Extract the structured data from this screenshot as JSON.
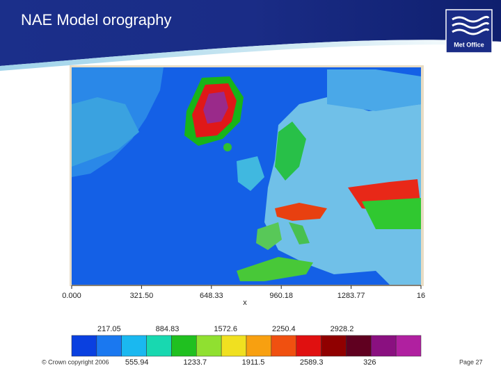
{
  "header": {
    "title": "NAE Model orography",
    "logo": "Met Office"
  },
  "map": {
    "x_ticks": [
      "0.000",
      "321.50",
      "648.33",
      "960.18",
      "1283.77",
      "16"
    ],
    "x_label": "x",
    "colorbar": {
      "upper_labels": [
        "217.05",
        "884.83",
        "1572.6",
        "2250.4",
        "2928.2"
      ],
      "lower_labels": [
        "555.94",
        "1233.7",
        "1911.5",
        "2589.3",
        "326"
      ]
    }
  },
  "footer": {
    "copyright": "© Crown copyright 2006",
    "page": "Page 27"
  }
}
